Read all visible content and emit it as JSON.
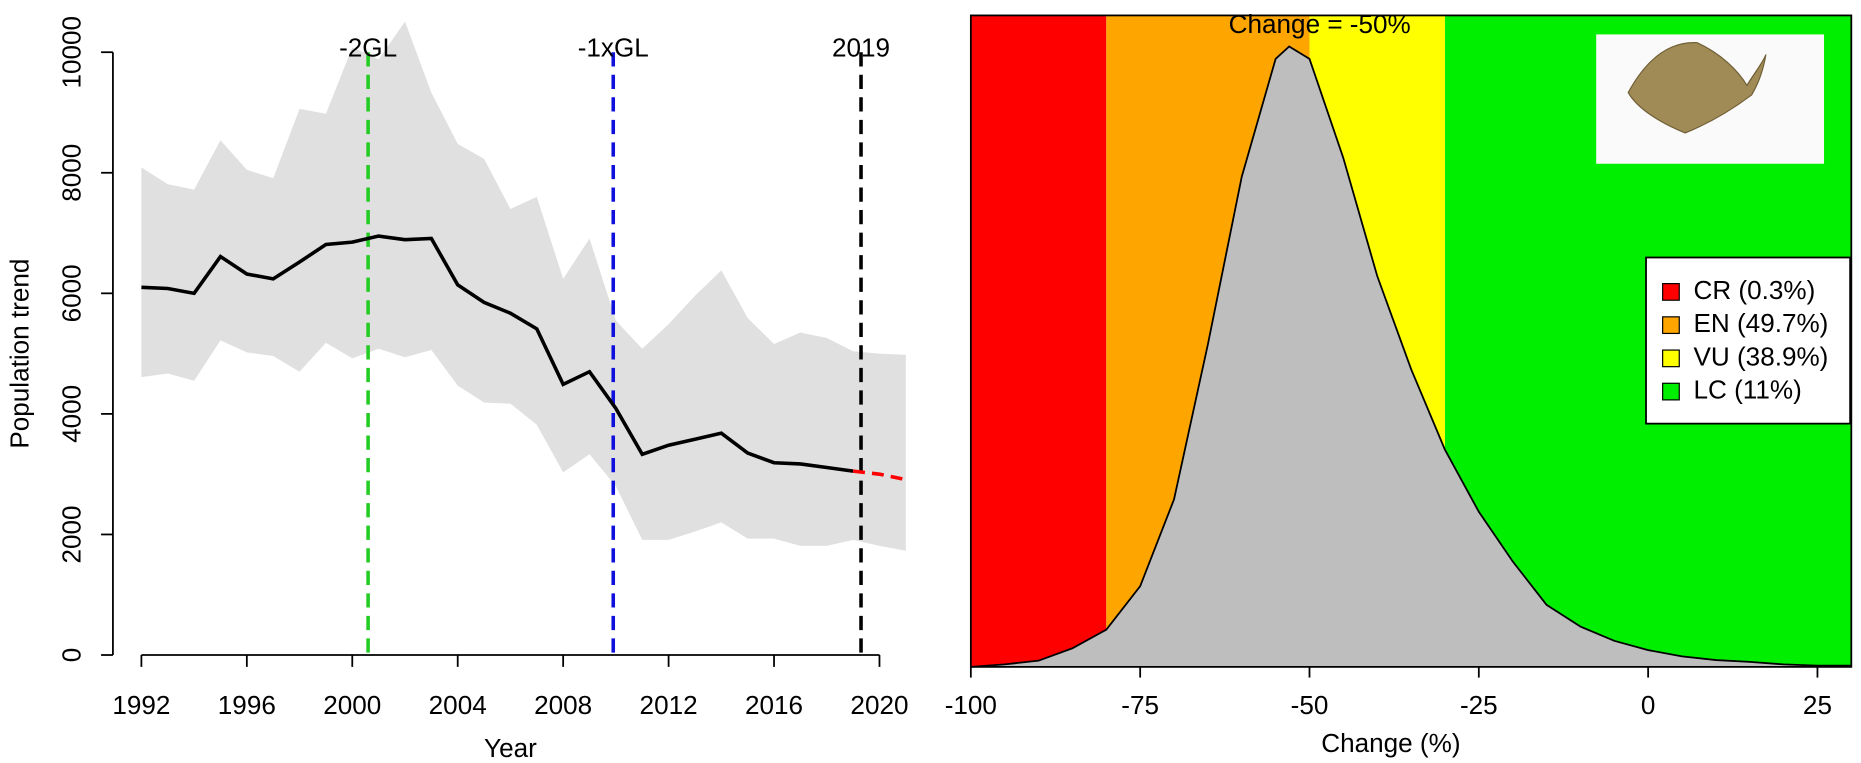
{
  "chart_data": [
    {
      "type": "line",
      "xlabel": "Year",
      "ylabel": "Population trend",
      "x": [
        1992,
        1993,
        1994,
        1995,
        1996,
        1997,
        1998,
        1999,
        2000,
        2001,
        2002,
        2003,
        2004,
        2005,
        2006,
        2007,
        2008,
        2009,
        2010,
        2011,
        2012,
        2013,
        2014,
        2015,
        2016,
        2017,
        2018,
        2019,
        2020,
        2021
      ],
      "series": [
        {
          "color": "#000000",
          "values": [
            6100,
            6080,
            6000,
            6610,
            6320,
            6240,
            6520,
            6810,
            6850,
            6950,
            6890,
            6910,
            6140,
            5850,
            5670,
            5410,
            4490,
            4700,
            4090,
            3330,
            3480,
            3580,
            3680,
            3350,
            3190,
            3170,
            3110,
            3050,
            null,
            null
          ]
        },
        {
          "color": "#ff0000",
          "dashed": true,
          "values": [
            null,
            null,
            null,
            null,
            null,
            null,
            null,
            null,
            null,
            null,
            null,
            null,
            null,
            null,
            null,
            null,
            null,
            null,
            null,
            null,
            null,
            null,
            null,
            null,
            null,
            null,
            null,
            3050,
            3000,
            2910
          ]
        }
      ],
      "band": {
        "color": "#e0e0e0",
        "upper": [
          8090,
          7810,
          7720,
          8540,
          8050,
          7910,
          9060,
          8980,
          10080,
          9880,
          10510,
          9330,
          8480,
          8230,
          7400,
          7600,
          6240,
          6910,
          5550,
          5080,
          5490,
          5960,
          6380,
          5590,
          5160,
          5350,
          5260,
          5040,
          5000,
          4980
        ],
        "lower": [
          4610,
          4670,
          4550,
          5220,
          5020,
          4960,
          4700,
          5180,
          4920,
          5080,
          4940,
          5060,
          4470,
          4190,
          4170,
          3820,
          3030,
          3330,
          2800,
          1910,
          1910,
          2050,
          2200,
          1930,
          1930,
          1810,
          1810,
          1910,
          1810,
          1730
        ]
      },
      "vlines": [
        {
          "x": 2000.6,
          "label": "-2GL",
          "color": "#22cc22"
        },
        {
          "x": 2009.9,
          "label": "-1xGL",
          "color": "#1010dd"
        },
        {
          "x": 2019.3,
          "label": "2019",
          "color": "#000000"
        }
      ],
      "xlim": [
        1992,
        2020
      ],
      "xticks": [
        1992,
        1996,
        2000,
        2004,
        2008,
        2012,
        2016,
        2020
      ],
      "ylim": [
        0,
        10000
      ],
      "yticks": [
        0,
        2000,
        4000,
        6000,
        8000,
        10000
      ]
    },
    {
      "type": "area",
      "title": "Change = -50%",
      "xlabel": "Change (%)",
      "x": [
        -100,
        -95,
        -90,
        -85,
        -80,
        -75,
        -70,
        -65,
        -60,
        -55,
        -53,
        -50,
        -45,
        -40,
        -35,
        -30,
        -25,
        -20,
        -15,
        -10,
        -5,
        0,
        5,
        10,
        15,
        20,
        25,
        30
      ],
      "values": [
        0,
        0.004,
        0.01,
        0.03,
        0.06,
        0.13,
        0.27,
        0.52,
        0.79,
        0.98,
        1.0,
        0.98,
        0.82,
        0.63,
        0.48,
        0.35,
        0.25,
        0.17,
        0.1,
        0.065,
        0.042,
        0.027,
        0.017,
        0.011,
        0.008,
        0.004,
        0.002,
        0.002
      ],
      "color": "#bebebe",
      "regions": [
        {
          "name": "CR (0.3%)",
          "from": -100,
          "to": -80,
          "color": "#ff0000"
        },
        {
          "name": "EN (49.7%)",
          "from": -80,
          "to": -50,
          "color": "#ffa500"
        },
        {
          "name": "VU (38.9%)",
          "from": -50,
          "to": -30,
          "color": "#ffff00"
        },
        {
          "name": "LC (11%)",
          "from": -30,
          "to": 30,
          "color": "#00ee00"
        }
      ],
      "xlim": [
        -100,
        30
      ],
      "xticks": [
        -100,
        -75,
        -50,
        -25,
        0,
        25
      ],
      "ylim": [
        0,
        1.05
      ],
      "legend": "right"
    }
  ]
}
